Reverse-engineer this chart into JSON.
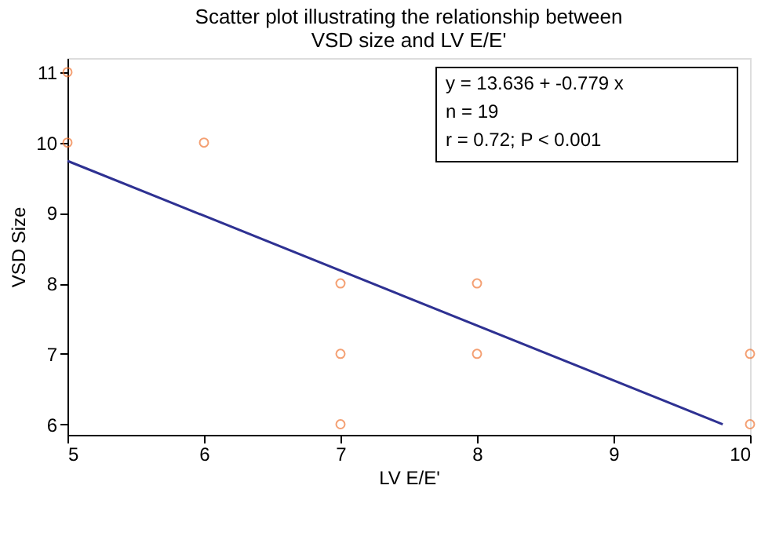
{
  "chart_data": {
    "type": "scatter",
    "title": "Scatter plot illustrating the relationship between\nVSD size and LV E/E'",
    "xlabel": "LV E/E'",
    "ylabel": "VSD Size",
    "series": [
      {
        "type": "scatter",
        "color": "#f07838",
        "x": [
          5,
          5,
          6,
          7,
          7,
          7,
          8,
          8,
          10,
          10
        ],
        "values": [
          11,
          10,
          10,
          8,
          7,
          6,
          8,
          7,
          7,
          6
        ],
        "marker": "circle"
      },
      {
        "type": "line",
        "color": "#2e3192",
        "x": [
          5,
          9.8
        ],
        "values": [
          9.74,
          6.0
        ],
        "line_style": "solid"
      }
    ],
    "xlim": [
      5,
      10
    ],
    "ylim": [
      5.85,
      11.2
    ],
    "xticks": [
      5,
      6,
      7,
      8,
      9,
      10
    ],
    "yticks": [
      6,
      7,
      8,
      9,
      10,
      11
    ],
    "grid": false,
    "annotations": [
      "y = 13.636  +  -0.779  x",
      "n = 19",
      "r = 0.72; P < 0.001"
    ]
  }
}
